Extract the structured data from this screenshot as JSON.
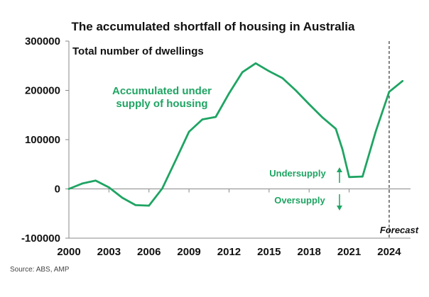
{
  "colors": {
    "line": "#1fa463",
    "text": "#111111",
    "axis": "#888888",
    "source": "#444444",
    "forecast_line": "#333333"
  },
  "chart_data": {
    "type": "line",
    "title": "The accumulated shortfall of housing in Australia",
    "ylabel": "",
    "xlabel": "",
    "subtitle": "Total number of dwellings",
    "ylim": [
      -100000,
      300000
    ],
    "xlim": [
      2000,
      2025.6
    ],
    "grid": false,
    "yticks": [
      300000,
      200000,
      100000,
      0,
      -100000
    ],
    "ytick_labels": [
      "300000",
      "200000",
      "100000",
      "0",
      "-100000"
    ],
    "xticks": [
      2000,
      2003,
      2006,
      2009,
      2012,
      2015,
      2018,
      2021,
      2024
    ],
    "xtick_labels": [
      "2000",
      "2003",
      "2006",
      "2009",
      "2012",
      "2015",
      "2018",
      "2021",
      "2024"
    ],
    "series": [
      {
        "x": [
          2000,
          2001,
          2002,
          2003,
          2004,
          2005,
          2006,
          2007,
          2008,
          2009,
          2010,
          2011,
          2012,
          2013,
          2014,
          2015,
          2016,
          2017,
          2018,
          2019,
          2020,
          2020.5,
          2021,
          2022,
          2023,
          2024,
          2025
        ],
        "values": [
          0,
          11000,
          17000,
          3000,
          -18000,
          -33000,
          -34000,
          1000,
          58000,
          116000,
          141000,
          146000,
          194000,
          237000,
          255000,
          239000,
          225000,
          200000,
          172000,
          145000,
          122000,
          80000,
          24000,
          25000,
          117000,
          197000,
          219000
        ]
      }
    ],
    "annotations": {
      "series_label_1": "Accumulated under",
      "series_label_2": "supply of housing",
      "undersupply": "Undersupply",
      "oversupply": "Oversupply",
      "forecast": "Forecast",
      "forecast_x": 2024
    },
    "source": "Source: ABS, AMP"
  }
}
